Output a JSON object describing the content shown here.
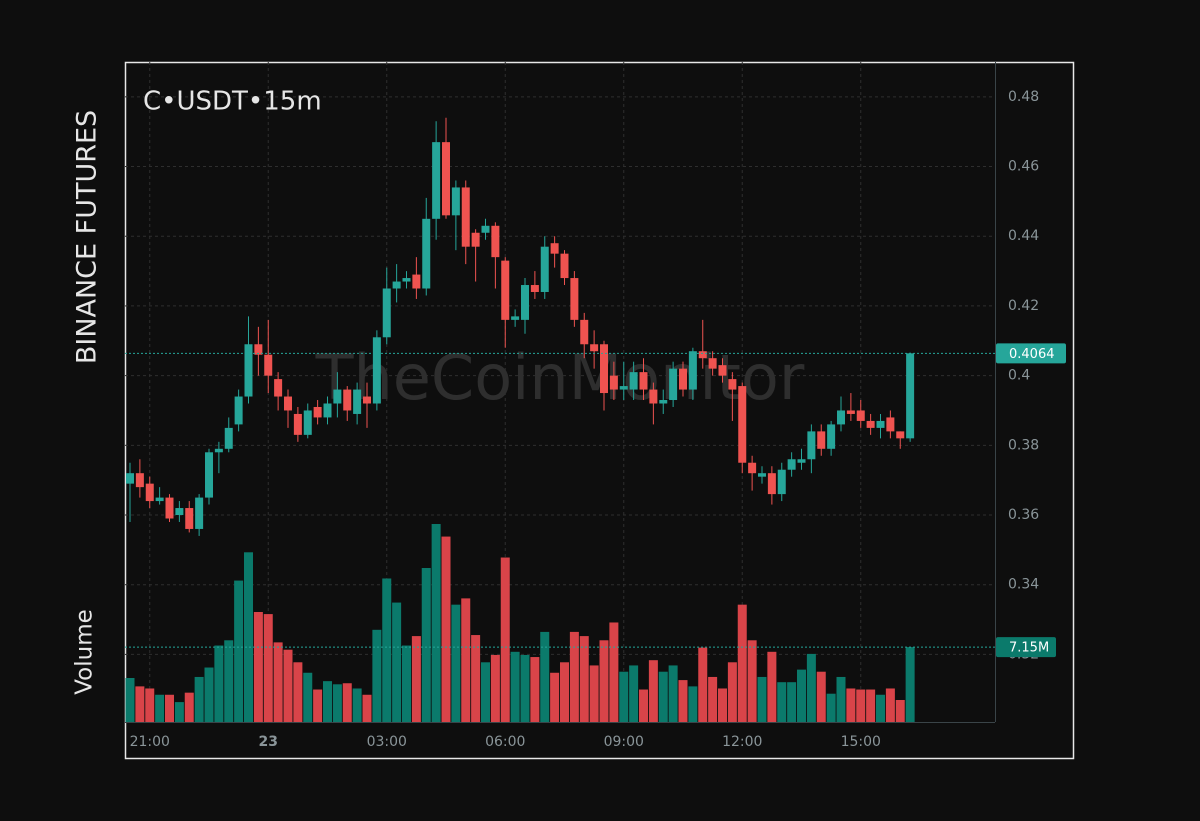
{
  "chart_data": {
    "type": "candlestick",
    "title": "C•USDT•15m",
    "subtitle": "BINANCE FUTURES",
    "volume_axis_label": "Volume",
    "watermark": "TheCoinMonitor",
    "categories": [
      null,
      null,
      "21:00",
      null,
      null,
      null,
      null,
      null,
      null,
      null,
      null,
      null,
      null,
      null,
      "23",
      null,
      null,
      null,
      null,
      null,
      null,
      null,
      null,
      null,
      null,
      null,
      "03:00",
      null,
      null,
      null,
      null,
      null,
      null,
      null,
      null,
      null,
      null,
      null,
      "06:00",
      null,
      null,
      null,
      null,
      null,
      null,
      null,
      null,
      null,
      null,
      null,
      "09:00",
      null,
      null,
      null,
      null,
      null,
      null,
      null,
      null,
      null,
      null,
      null,
      "12:00",
      null,
      null,
      null,
      null,
      null,
      null,
      null,
      null,
      null,
      null,
      null,
      "15:00",
      null,
      null,
      null,
      null,
      null
    ],
    "open": [
      0.369,
      0.372,
      0.369,
      0.364,
      0.365,
      0.36,
      0.362,
      0.356,
      0.365,
      0.378,
      0.379,
      0.386,
      0.394,
      0.409,
      0.406,
      0.399,
      0.394,
      0.389,
      0.383,
      0.391,
      0.388,
      0.392,
      0.396,
      0.389,
      0.394,
      0.392,
      0.411,
      0.425,
      0.427,
      0.429,
      0.425,
      0.445,
      0.467,
      0.446,
      0.454,
      0.441,
      0.441,
      0.443,
      0.433,
      0.416,
      0.416,
      0.426,
      0.424,
      0.438,
      0.435,
      0.428,
      0.416,
      0.409,
      0.409,
      0.4,
      0.396,
      0.396,
      0.401,
      0.396,
      0.392,
      0.393,
      0.402,
      0.396,
      0.407,
      0.405,
      0.403,
      0.399,
      0.397,
      0.375,
      0.371,
      0.372,
      0.366,
      0.373,
      0.375,
      0.376,
      0.384,
      0.379,
      0.386,
      0.39,
      0.39,
      0.387,
      0.385,
      0.388,
      0.384,
      0.382
    ],
    "high": [
      0.375,
      0.376,
      0.371,
      0.368,
      0.366,
      0.364,
      0.364,
      0.366,
      0.379,
      0.381,
      0.388,
      0.396,
      0.417,
      0.414,
      0.416,
      0.401,
      0.396,
      0.391,
      0.392,
      0.393,
      0.394,
      0.401,
      0.397,
      0.398,
      0.398,
      0.413,
      0.431,
      0.432,
      0.43,
      0.434,
      0.451,
      0.473,
      0.474,
      0.456,
      0.456,
      0.442,
      0.445,
      0.444,
      0.434,
      0.419,
      0.428,
      0.43,
      0.44,
      0.44,
      0.436,
      0.43,
      0.418,
      0.413,
      0.41,
      0.404,
      0.404,
      0.404,
      0.405,
      0.398,
      0.396,
      0.404,
      0.404,
      0.408,
      0.416,
      0.407,
      0.405,
      0.401,
      0.398,
      0.377,
      0.374,
      0.374,
      0.375,
      0.378,
      0.379,
      0.386,
      0.386,
      0.387,
      0.394,
      0.395,
      0.393,
      0.389,
      0.389,
      0.39,
      0.384,
      0.4066
    ],
    "low": [
      0.358,
      0.365,
      0.362,
      0.363,
      0.358,
      0.358,
      0.355,
      0.354,
      0.363,
      0.372,
      0.378,
      0.384,
      0.392,
      0.4,
      0.395,
      0.39,
      0.385,
      0.381,
      0.382,
      0.386,
      0.386,
      0.388,
      0.387,
      0.386,
      0.385,
      0.39,
      0.409,
      0.421,
      0.425,
      0.422,
      0.423,
      0.439,
      0.445,
      0.436,
      0.432,
      0.427,
      0.439,
      0.425,
      0.408,
      0.414,
      0.412,
      0.422,
      0.422,
      0.431,
      0.426,
      0.414,
      0.405,
      0.402,
      0.39,
      0.393,
      0.393,
      0.393,
      0.393,
      0.386,
      0.389,
      0.391,
      0.394,
      0.393,
      0.402,
      0.4,
      0.398,
      0.387,
      0.372,
      0.367,
      0.369,
      0.363,
      0.364,
      0.371,
      0.373,
      0.372,
      0.377,
      0.377,
      0.384,
      0.387,
      0.385,
      0.383,
      0.382,
      0.382,
      0.379,
      0.381
    ],
    "close": [
      0.372,
      0.368,
      0.364,
      0.365,
      0.359,
      0.362,
      0.356,
      0.365,
      0.378,
      0.379,
      0.385,
      0.394,
      0.409,
      0.406,
      0.4,
      0.394,
      0.39,
      0.383,
      0.39,
      0.388,
      0.392,
      0.396,
      0.39,
      0.396,
      0.392,
      0.411,
      0.425,
      0.427,
      0.428,
      0.425,
      0.445,
      0.467,
      0.446,
      0.454,
      0.437,
      0.437,
      0.443,
      0.434,
      0.416,
      0.417,
      0.426,
      0.424,
      0.437,
      0.435,
      0.428,
      0.416,
      0.409,
      0.407,
      0.395,
      0.396,
      0.397,
      0.401,
      0.396,
      0.392,
      0.393,
      0.402,
      0.396,
      0.407,
      0.405,
      0.402,
      0.4,
      0.396,
      0.375,
      0.372,
      0.372,
      0.366,
      0.373,
      0.376,
      0.376,
      0.384,
      0.379,
      0.386,
      0.39,
      0.389,
      0.387,
      0.385,
      0.387,
      0.384,
      0.382,
      0.4064
    ],
    "volume": [
      4.2,
      3.4,
      3.2,
      2.6,
      2.6,
      1.9,
      2.8,
      4.3,
      5.2,
      7.3,
      7.8,
      13.5,
      16.2,
      10.5,
      10.3,
      7.6,
      6.9,
      5.7,
      4.7,
      3.1,
      3.9,
      3.6,
      3.7,
      3.2,
      2.6,
      8.8,
      13.7,
      11.4,
      7.3,
      8.2,
      14.7,
      18.9,
      17.7,
      11.2,
      11.8,
      8.3,
      5.7,
      6.4,
      15.7,
      6.7,
      6.4,
      6.2,
      8.6,
      4.7,
      5.7,
      8.6,
      8.2,
      5.4,
      7.8,
      9.5,
      4.8,
      5.4,
      3.1,
      5.9,
      4.8,
      5.4,
      4.0,
      3.4,
      7.1,
      4.3,
      3.2,
      5.7,
      11.2,
      7.8,
      4.3,
      6.7,
      3.8,
      3.8,
      5.0,
      6.5,
      4.8,
      2.7,
      4.3,
      3.2,
      3.1,
      3.1,
      2.6,
      3.2,
      2.1,
      7.15
    ],
    "volume_last_label": "7.15M",
    "up_color": "#26a69a",
    "down_color": "#ef5350",
    "volume_up_color": "#0b7a6b",
    "volume_down_color": "#d94449",
    "ylim": [
      0.3006,
      0.49
    ],
    "yticks": [
      0.32,
      0.34,
      0.36,
      0.38,
      0.4,
      0.42,
      0.44,
      0.46,
      0.48
    ],
    "grid": true
  }
}
